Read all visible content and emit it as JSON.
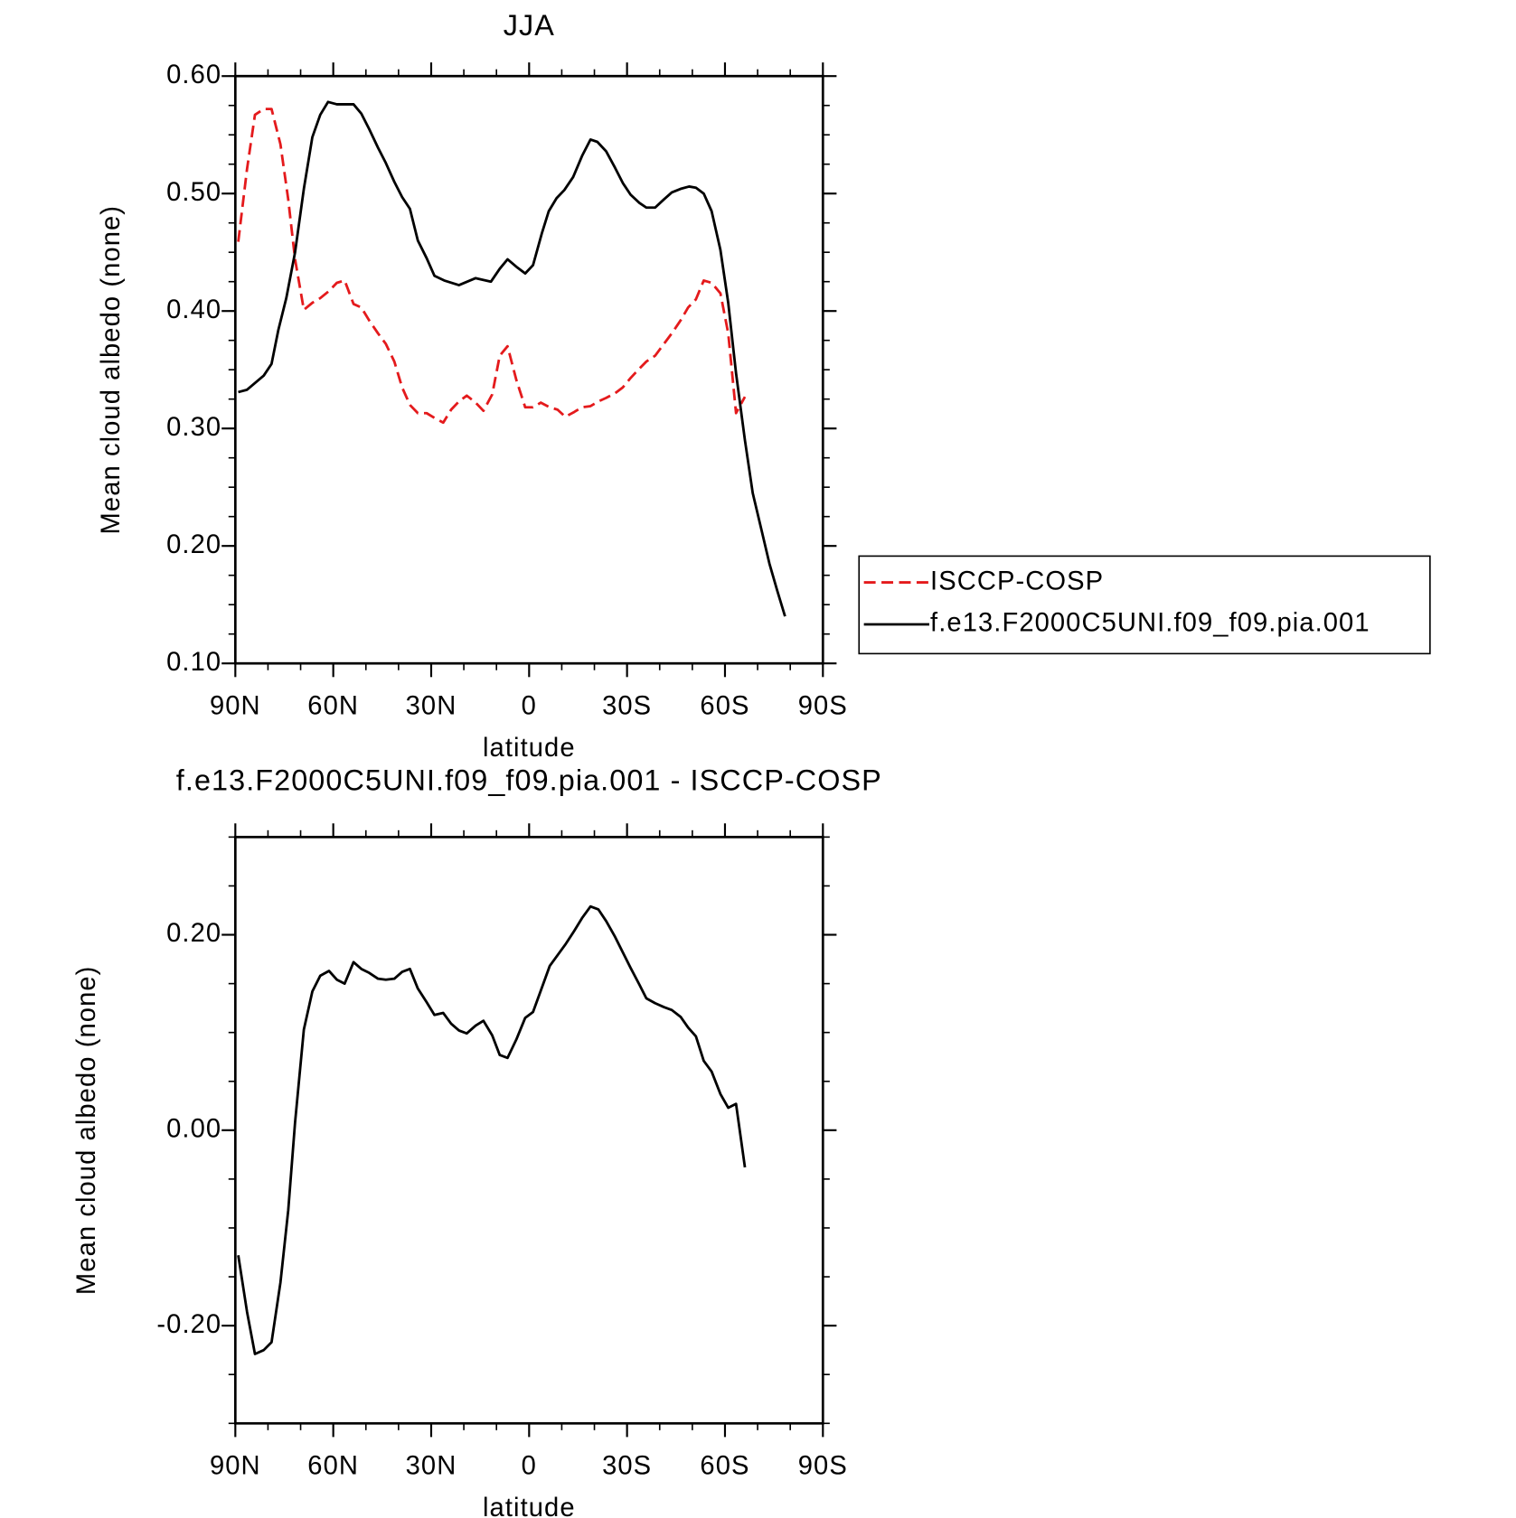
{
  "chart_data": [
    {
      "type": "line",
      "title": "JJA",
      "xlabel": "latitude",
      "ylabel": "Mean cloud albedo (none)",
      "xlim": [
        90,
        -90
      ],
      "ylim": [
        0.1,
        0.6
      ],
      "xticks": [
        {
          "value": 90,
          "label": "90N"
        },
        {
          "value": 60,
          "label": "60N"
        },
        {
          "value": 30,
          "label": "30N"
        },
        0,
        {
          "value": -30,
          "label": "30S"
        },
        {
          "value": -60,
          "label": "60S"
        },
        {
          "value": -90,
          "label": "90S"
        }
      ],
      "yticks": [
        {
          "value": 0.1,
          "label": "0.10"
        },
        {
          "value": 0.2,
          "label": "0.20"
        },
        {
          "value": 0.3,
          "label": "0.30"
        },
        {
          "value": 0.4,
          "label": "0.40"
        },
        {
          "value": 0.5,
          "label": "0.50"
        },
        {
          "value": 0.6,
          "label": "0.60"
        }
      ],
      "legend": "outside right",
      "series": [
        {
          "name": "ISCCP-COSP",
          "color": "#e41a1c",
          "linestyle": "dashed",
          "x": [
            89.1,
            86.4,
            84.0,
            81.3,
            78.9,
            76.2,
            73.8,
            71.7,
            69.0,
            66.4,
            64.0,
            61.3,
            58.9,
            56.5,
            53.8,
            51.4,
            49.0,
            46.3,
            43.9,
            41.3,
            38.9,
            36.5,
            34.1,
            31.4,
            29.0,
            26.3,
            23.9,
            21.5,
            19.1,
            16.4,
            14.0,
            11.3,
            9.0,
            6.6,
            3.9,
            1.2,
            -1.2,
            -3.6,
            -6.3,
            -8.7,
            -11.1,
            -13.8,
            -16.2,
            -18.8,
            -21.2,
            -23.6,
            -26.3,
            -28.7,
            -31.1,
            -33.8,
            -35.9,
            -38.6,
            -41.3,
            -43.7,
            -46.4,
            -48.7,
            -51.1,
            -53.5,
            -55.9,
            -58.6,
            -61.0,
            -63.4,
            -66.1
          ],
          "values": [
            0.459,
            0.521,
            0.567,
            0.572,
            0.572,
            0.542,
            0.495,
            0.444,
            0.401,
            0.407,
            0.411,
            0.417,
            0.424,
            0.426,
            0.406,
            0.403,
            0.392,
            0.381,
            0.372,
            0.357,
            0.335,
            0.32,
            0.313,
            0.313,
            0.309,
            0.305,
            0.316,
            0.323,
            0.328,
            0.322,
            0.315,
            0.329,
            0.362,
            0.37,
            0.341,
            0.318,
            0.318,
            0.322,
            0.318,
            0.316,
            0.31,
            0.314,
            0.318,
            0.319,
            0.323,
            0.326,
            0.33,
            0.335,
            0.343,
            0.351,
            0.357,
            0.362,
            0.372,
            0.381,
            0.392,
            0.403,
            0.41,
            0.426,
            0.424,
            0.415,
            0.381,
            0.313,
            0.327
          ]
        },
        {
          "name": "f.e13.F2000C5UNI.f09_f09.pia.001",
          "color": "#000000",
          "linestyle": "solid",
          "x": [
            89.1,
            86.4,
            81.3,
            78.9,
            76.8,
            74.4,
            71.7,
            69.0,
            66.4,
            64.0,
            61.6,
            58.9,
            53.8,
            51.4,
            49.0,
            46.3,
            43.9,
            41.3,
            38.9,
            36.5,
            34.1,
            31.4,
            29.0,
            26.0,
            21.5,
            16.4,
            11.7,
            9.0,
            6.6,
            3.6,
            1.2,
            -1.2,
            -3.9,
            -6.0,
            -8.4,
            -10.8,
            -13.5,
            -16.2,
            -18.8,
            -20.9,
            -23.6,
            -26.3,
            -28.7,
            -31.1,
            -33.8,
            -35.9,
            -38.6,
            -41.3,
            -43.7,
            -46.4,
            -49.0,
            -51.1,
            -53.5,
            -55.9,
            -58.6,
            -61.0,
            -63.4,
            -66.1,
            -68.5,
            -70.9,
            -73.6,
            -76.0,
            -78.4
          ],
          "values": [
            0.331,
            0.333,
            0.345,
            0.355,
            0.384,
            0.411,
            0.45,
            0.504,
            0.548,
            0.567,
            0.578,
            0.576,
            0.576,
            0.568,
            0.555,
            0.539,
            0.526,
            0.51,
            0.497,
            0.487,
            0.46,
            0.445,
            0.43,
            0.426,
            0.422,
            0.428,
            0.425,
            0.436,
            0.444,
            0.437,
            0.432,
            0.439,
            0.466,
            0.485,
            0.496,
            0.503,
            0.514,
            0.532,
            0.546,
            0.544,
            0.536,
            0.522,
            0.509,
            0.499,
            0.492,
            0.488,
            0.488,
            0.495,
            0.501,
            0.504,
            0.506,
            0.505,
            0.5,
            0.485,
            0.452,
            0.407,
            0.347,
            0.29,
            0.245,
            0.217,
            0.185,
            0.162,
            0.14
          ]
        }
      ]
    },
    {
      "type": "line",
      "title": "f.e13.F2000C5UNI.f09_f09.pia.001 - ISCCP-COSP",
      "xlabel": "latitude",
      "ylabel": "Mean cloud albedo (none)",
      "xlim": [
        90,
        -90
      ],
      "ylim": [
        -0.3,
        0.3
      ],
      "xticks": [
        {
          "value": 90,
          "label": "90N"
        },
        {
          "value": 60,
          "label": "60N"
        },
        {
          "value": 30,
          "label": "30N"
        },
        0,
        {
          "value": -30,
          "label": "30S"
        },
        {
          "value": -60,
          "label": "60S"
        },
        {
          "value": -90,
          "label": "90S"
        }
      ],
      "yticks": [
        {
          "value": -0.2,
          "label": "-0.20"
        },
        {
          "value": 0,
          "label": "0.00"
        },
        {
          "value": 0.2,
          "label": "0.20"
        }
      ],
      "series": [
        {
          "color": "#000000",
          "linestyle": "solid",
          "x": [
            89.1,
            86.4,
            84.0,
            81.3,
            78.9,
            76.2,
            73.8,
            71.7,
            69.0,
            66.4,
            64.0,
            61.3,
            58.9,
            56.5,
            53.8,
            51.4,
            49.0,
            46.3,
            43.9,
            41.3,
            38.9,
            36.5,
            34.1,
            31.4,
            29.0,
            26.3,
            23.9,
            21.5,
            19.1,
            16.4,
            14.0,
            11.3,
            9.0,
            6.6,
            3.9,
            1.2,
            -1.2,
            -3.6,
            -6.3,
            -8.7,
            -11.1,
            -13.8,
            -16.2,
            -18.8,
            -21.2,
            -23.6,
            -26.3,
            -28.7,
            -31.1,
            -33.8,
            -35.9,
            -38.6,
            -41.3,
            -43.7,
            -46.4,
            -48.7,
            -51.1,
            -53.5,
            -55.9,
            -58.6,
            -61.0,
            -63.4,
            -66.1
          ],
          "values": [
            -0.128,
            -0.186,
            -0.229,
            -0.225,
            -0.217,
            -0.156,
            -0.082,
            0.008,
            0.103,
            0.142,
            0.158,
            0.163,
            0.154,
            0.15,
            0.172,
            0.165,
            0.161,
            0.155,
            0.154,
            0.155,
            0.162,
            0.165,
            0.145,
            0.131,
            0.118,
            0.12,
            0.109,
            0.102,
            0.099,
            0.107,
            0.112,
            0.097,
            0.077,
            0.074,
            0.093,
            0.115,
            0.121,
            0.143,
            0.168,
            0.179,
            0.19,
            0.204,
            0.217,
            0.229,
            0.226,
            0.214,
            0.198,
            0.182,
            0.166,
            0.149,
            0.135,
            0.13,
            0.126,
            0.123,
            0.116,
            0.105,
            0.096,
            0.071,
            0.06,
            0.037,
            0.023,
            0.027,
            -0.038
          ]
        }
      ]
    }
  ]
}
